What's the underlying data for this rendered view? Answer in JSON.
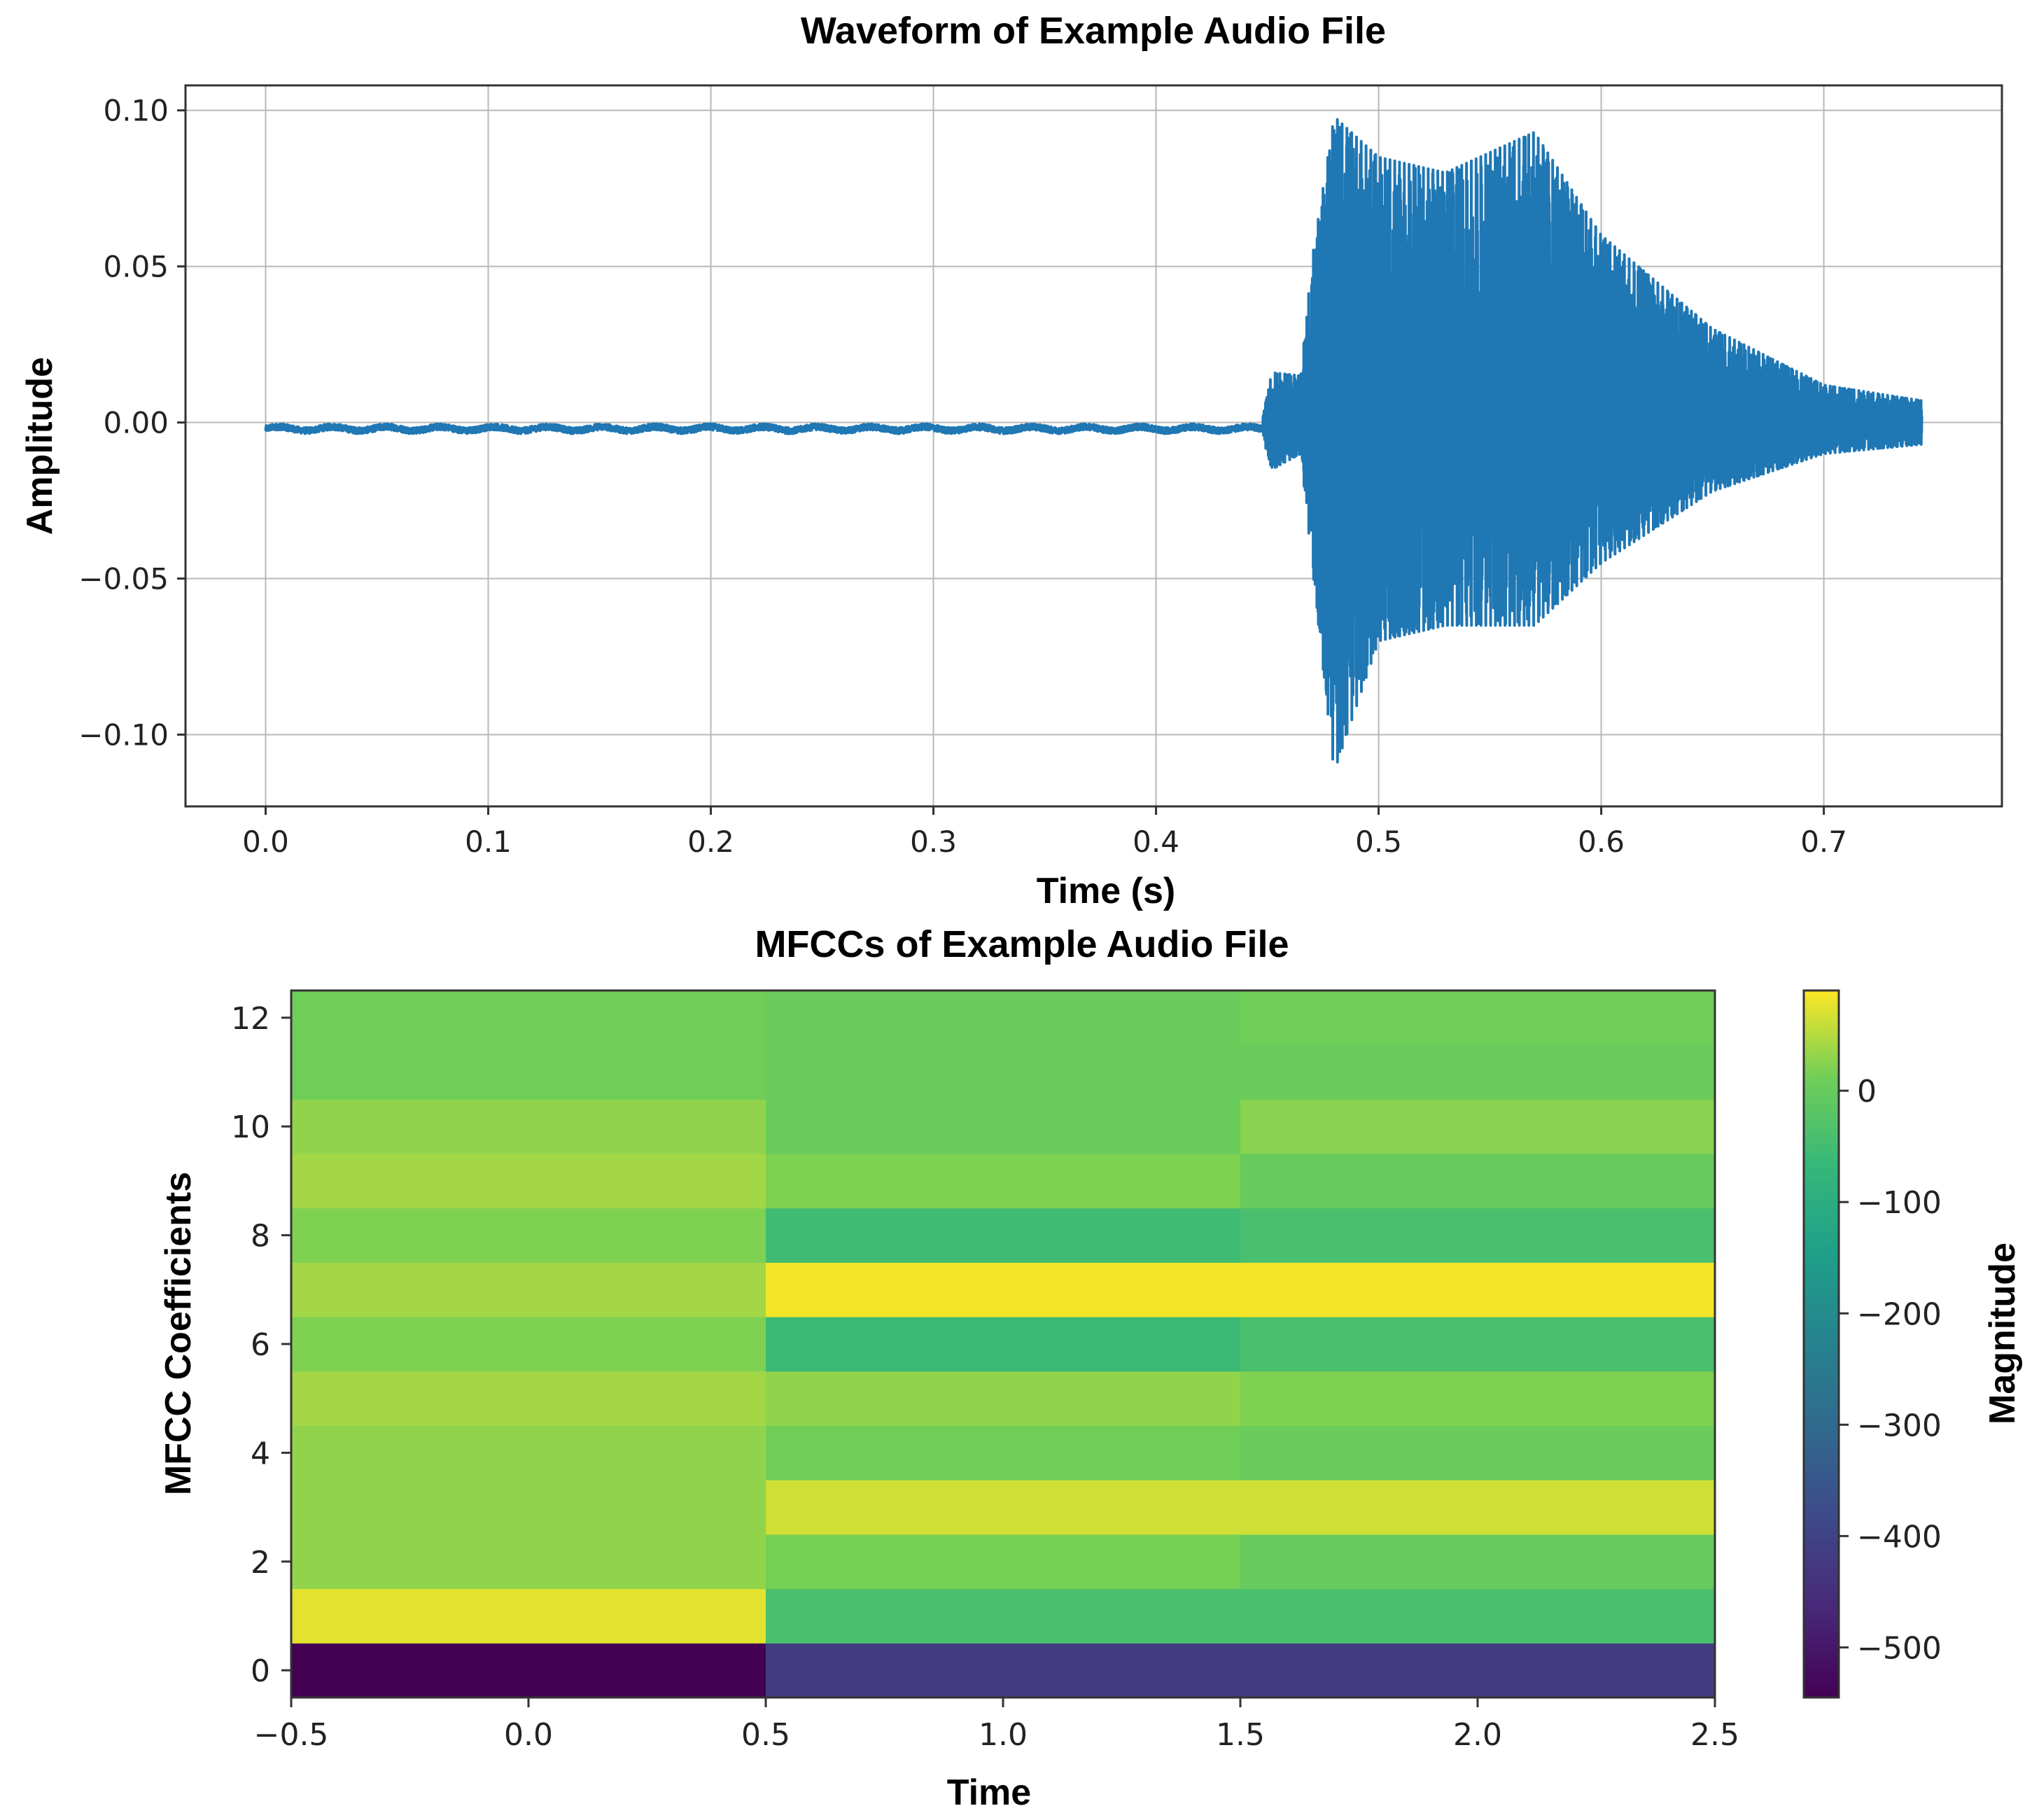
{
  "chart_data": [
    {
      "type": "line",
      "title": "Waveform of Example Audio File",
      "xlabel": "Time (s)",
      "ylabel": "Amplitude",
      "xlim": [
        -0.036,
        0.78
      ],
      "ylim": [
        -0.123,
        0.108
      ],
      "xticks": [
        0.0,
        0.1,
        0.2,
        0.3,
        0.4,
        0.5,
        0.6,
        0.7
      ],
      "xtick_labels": [
        "0.0",
        "0.1",
        "0.2",
        "0.3",
        "0.4",
        "0.5",
        "0.6",
        "0.7"
      ],
      "yticks": [
        0.1,
        0.05,
        0.0,
        -0.05,
        -0.1
      ],
      "ytick_labels": [
        "0.10",
        "0.05",
        "0.00",
        "−0.05",
        "−0.10"
      ],
      "grid": true,
      "color": "#1f77b4",
      "series": [
        {
          "name": "waveform",
          "x_range": [
            0.0,
            0.744
          ],
          "onset_time": 0.448,
          "noise_floor_mean": -0.002,
          "noise_floor_range": 0.002,
          "envelope_time": [
            0.0,
            0.448,
            0.452,
            0.465,
            0.47,
            0.48,
            0.5,
            0.53,
            0.57,
            0.6,
            0.65,
            0.7,
            0.744
          ],
          "envelope_upper": [
            0.002,
            0.002,
            0.016,
            0.015,
            0.052,
            0.098,
            0.085,
            0.08,
            0.093,
            0.06,
            0.03,
            0.012,
            0.007
          ],
          "envelope_lower": [
            -0.006,
            -0.005,
            -0.015,
            -0.01,
            -0.045,
            -0.112,
            -0.07,
            -0.065,
            -0.065,
            -0.045,
            -0.022,
            -0.01,
            -0.007
          ]
        }
      ]
    },
    {
      "type": "heatmap",
      "title": "MFCCs of Example Audio File",
      "xlabel": "Time",
      "ylabel": "MFCC Coefficients",
      "colorbar_label": "Magnitude",
      "colormap": "viridis",
      "vmin": -545,
      "vmax": 90,
      "xlim": [
        -0.5,
        2.5
      ],
      "ylim": [
        -0.5,
        12.5
      ],
      "xticks": [
        -0.5,
        0.0,
        0.5,
        1.0,
        1.5,
        2.0,
        2.5
      ],
      "xtick_labels": [
        "−0.5",
        "0.0",
        "0.5",
        "1.0",
        "1.5",
        "2.0",
        "2.5"
      ],
      "yticks": [
        0,
        2,
        4,
        6,
        8,
        10,
        12
      ],
      "ytick_labels": [
        "0",
        "2",
        "4",
        "6",
        "8",
        "10",
        "12"
      ],
      "colorbar_ticks": [
        0,
        -100,
        -200,
        -300,
        -400,
        -500
      ],
      "colorbar_tick_labels": [
        "0",
        "−100",
        "−200",
        "−300",
        "−400",
        "−500"
      ],
      "time_frames": [
        0,
        1,
        2
      ],
      "coefficients": [
        0,
        1,
        2,
        3,
        4,
        5,
        6,
        7,
        8,
        9,
        10,
        11,
        12
      ],
      "values": [
        [
          -545,
          75,
          30,
          30,
          30,
          40,
          20,
          40,
          20,
          40,
          30,
          10,
          10
        ],
        [
          -420,
          -40,
          15,
          65,
          10,
          30,
          -60,
          85,
          -55,
          20,
          5,
          5,
          5
        ],
        [
          -420,
          -40,
          0,
          65,
          5,
          20,
          -40,
          85,
          -40,
          0,
          25,
          5,
          10
        ]
      ]
    }
  ]
}
